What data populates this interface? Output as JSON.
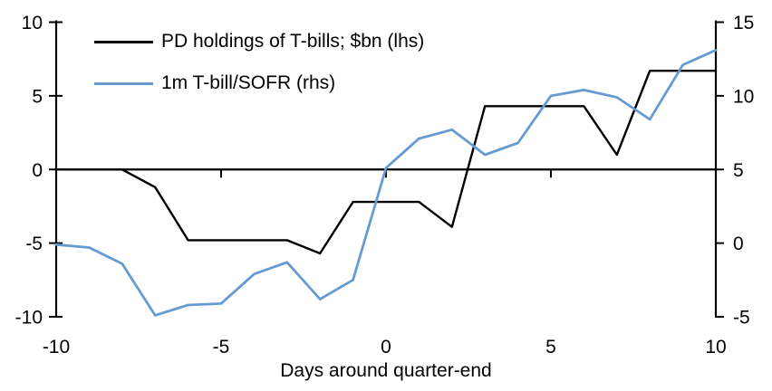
{
  "chart_data": {
    "type": "line",
    "xlabel": "Days around quarter-end",
    "x_range": [
      -10,
      10
    ],
    "x_ticks": [
      -10,
      -5,
      0,
      5,
      10
    ],
    "x": [
      -10,
      -9,
      -8,
      -7,
      -6,
      -5,
      -4,
      -3,
      -2,
      -1,
      0,
      1,
      2,
      3,
      4,
      5,
      6,
      7,
      8,
      9,
      10
    ],
    "left_axis": {
      "range": [
        -10,
        10
      ],
      "ticks": [
        10,
        5,
        0,
        -5,
        -10
      ]
    },
    "right_axis": {
      "range": [
        -5,
        15
      ],
      "ticks": [
        15,
        10,
        5,
        0,
        -5
      ]
    },
    "zero_line": true,
    "grid": false,
    "legend_position": "top-left-inside",
    "series": [
      {
        "name": "PD holdings of T-bills; $bn (lhs)",
        "axis": "left",
        "color": "#000000",
        "values": [
          0,
          0,
          0,
          -1.2,
          -4.8,
          -4.8,
          -4.8,
          -4.8,
          -5.7,
          -2.2,
          -2.2,
          -2.2,
          -3.9,
          4.3,
          4.3,
          4.3,
          4.3,
          1.0,
          6.7,
          6.7,
          6.7
        ]
      },
      {
        "name": "1m T-bill/SOFR (rhs)",
        "axis": "right",
        "color": "#669BD2",
        "values": [
          -0.1,
          -0.3,
          -1.4,
          -4.9,
          -4.2,
          -4.1,
          -2.1,
          -1.3,
          -3.8,
          -2.5,
          5.1,
          7.1,
          7.7,
          6.0,
          6.8,
          10.0,
          10.4,
          9.9,
          8.4,
          12.1,
          13.1
        ]
      }
    ]
  }
}
